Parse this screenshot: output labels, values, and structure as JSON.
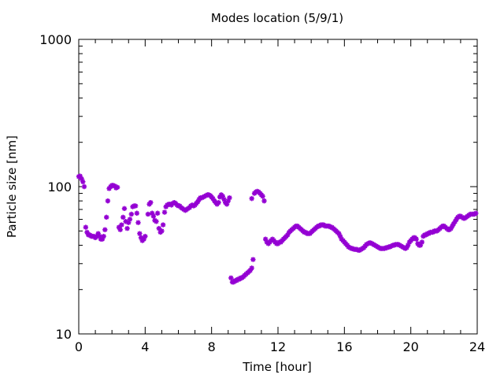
{
  "chart_data": {
    "type": "scatter",
    "title": "Modes location (5/9/1)",
    "xlabel": "Time [hour]",
    "ylabel": "Particle size [nm]",
    "xlim": [
      0,
      24
    ],
    "ylim": [
      10,
      1000
    ],
    "yscale": "log",
    "x_ticks": [
      0,
      4,
      8,
      12,
      16,
      20,
      24
    ],
    "x_tick_labels": [
      "0",
      "4",
      "8",
      "12",
      "16",
      "20",
      "24"
    ],
    "y_ticks": [
      10,
      100,
      1000
    ],
    "y_tick_labels": [
      "10",
      "100",
      "1000"
    ],
    "grid": false,
    "legend": "none",
    "marker": "asterisk",
    "colors": {
      "points": "#9400d3",
      "axis": "#000000",
      "background": "#ffffff"
    },
    "series": [
      {
        "points": [
          [
            0.0,
            117
          ],
          [
            0.08,
            118
          ],
          [
            0.17,
            113
          ],
          [
            0.25,
            108
          ],
          [
            0.33,
            100
          ],
          [
            0.42,
            53
          ],
          [
            0.5,
            49
          ],
          [
            0.58,
            47
          ],
          [
            0.67,
            47
          ],
          [
            0.75,
            46
          ],
          [
            0.83,
            46
          ],
          [
            0.92,
            46
          ],
          [
            1.0,
            45
          ],
          [
            1.08,
            46
          ],
          [
            1.17,
            48
          ],
          [
            1.25,
            46
          ],
          [
            1.33,
            44
          ],
          [
            1.42,
            44
          ],
          [
            1.5,
            46
          ],
          [
            1.58,
            51
          ],
          [
            1.67,
            62
          ],
          [
            1.75,
            80
          ],
          [
            1.83,
            97
          ],
          [
            1.92,
            100
          ],
          [
            2.0,
            102
          ],
          [
            2.08,
            102
          ],
          [
            2.17,
            101
          ],
          [
            2.25,
            98
          ],
          [
            2.33,
            99
          ],
          [
            2.42,
            53
          ],
          [
            2.5,
            51
          ],
          [
            2.58,
            55
          ],
          [
            2.67,
            62
          ],
          [
            2.75,
            71
          ],
          [
            2.83,
            58
          ],
          [
            2.92,
            52
          ],
          [
            3.0,
            57
          ],
          [
            3.08,
            60
          ],
          [
            3.17,
            65
          ],
          [
            3.25,
            73
          ],
          [
            3.33,
            74
          ],
          [
            3.42,
            74
          ],
          [
            3.5,
            66
          ],
          [
            3.58,
            57
          ],
          [
            3.67,
            48
          ],
          [
            3.75,
            45
          ],
          [
            3.83,
            43
          ],
          [
            3.92,
            44
          ],
          [
            4.0,
            46
          ],
          [
            4.17,
            65
          ],
          [
            4.25,
            76
          ],
          [
            4.33,
            78
          ],
          [
            4.42,
            66
          ],
          [
            4.5,
            63
          ],
          [
            4.58,
            59
          ],
          [
            4.67,
            58
          ],
          [
            4.75,
            66
          ],
          [
            4.83,
            52
          ],
          [
            4.92,
            49
          ],
          [
            5.0,
            50
          ],
          [
            5.08,
            55
          ],
          [
            5.17,
            67
          ],
          [
            5.25,
            73
          ],
          [
            5.33,
            75
          ],
          [
            5.42,
            76
          ],
          [
            5.5,
            76
          ],
          [
            5.58,
            75
          ],
          [
            5.67,
            77
          ],
          [
            5.75,
            78
          ],
          [
            5.83,
            77
          ],
          [
            5.92,
            75
          ],
          [
            6.0,
            74
          ],
          [
            6.08,
            74
          ],
          [
            6.17,
            72
          ],
          [
            6.25,
            71
          ],
          [
            6.33,
            70
          ],
          [
            6.42,
            69
          ],
          [
            6.5,
            70
          ],
          [
            6.58,
            71
          ],
          [
            6.67,
            72
          ],
          [
            6.75,
            74
          ],
          [
            6.83,
            75
          ],
          [
            6.92,
            74
          ],
          [
            7.0,
            75
          ],
          [
            7.08,
            77
          ],
          [
            7.17,
            79
          ],
          [
            7.25,
            82
          ],
          [
            7.33,
            84
          ],
          [
            7.42,
            84
          ],
          [
            7.5,
            85
          ],
          [
            7.58,
            86
          ],
          [
            7.67,
            87
          ],
          [
            7.75,
            88
          ],
          [
            7.83,
            88
          ],
          [
            7.92,
            87
          ],
          [
            8.0,
            85
          ],
          [
            8.08,
            83
          ],
          [
            8.17,
            80
          ],
          [
            8.25,
            78
          ],
          [
            8.33,
            76
          ],
          [
            8.42,
            78
          ],
          [
            8.5,
            85
          ],
          [
            8.58,
            88
          ],
          [
            8.67,
            86
          ],
          [
            8.75,
            82
          ],
          [
            8.83,
            78
          ],
          [
            8.92,
            76
          ],
          [
            9.0,
            80
          ],
          [
            9.08,
            84
          ],
          [
            9.17,
            24
          ],
          [
            9.25,
            22.5
          ],
          [
            9.33,
            22.5
          ],
          [
            9.42,
            23
          ],
          [
            9.5,
            23
          ],
          [
            9.58,
            23.5
          ],
          [
            9.67,
            23.5
          ],
          [
            9.75,
            24
          ],
          [
            9.83,
            24
          ],
          [
            9.92,
            24.5
          ],
          [
            10.0,
            25
          ],
          [
            10.08,
            25.5
          ],
          [
            10.17,
            26
          ],
          [
            10.25,
            26.5
          ],
          [
            10.33,
            27
          ],
          [
            10.42,
            28
          ],
          [
            10.5,
            32
          ],
          [
            10.42,
            83
          ],
          [
            10.58,
            90
          ],
          [
            10.67,
            92
          ],
          [
            10.75,
            93
          ],
          [
            10.83,
            92
          ],
          [
            10.92,
            90
          ],
          [
            11.0,
            88
          ],
          [
            11.08,
            86
          ],
          [
            11.17,
            80
          ],
          [
            11.25,
            44
          ],
          [
            11.33,
            42
          ],
          [
            11.42,
            41
          ],
          [
            11.5,
            42
          ],
          [
            11.58,
            43
          ],
          [
            11.67,
            44
          ],
          [
            11.75,
            43
          ],
          [
            11.83,
            42
          ],
          [
            11.92,
            41
          ],
          [
            12.0,
            41
          ],
          [
            12.08,
            42
          ],
          [
            12.17,
            42
          ],
          [
            12.25,
            43
          ],
          [
            12.33,
            44
          ],
          [
            12.42,
            45
          ],
          [
            12.5,
            46
          ],
          [
            12.58,
            47
          ],
          [
            12.67,
            49
          ],
          [
            12.75,
            50
          ],
          [
            12.83,
            51
          ],
          [
            12.92,
            52
          ],
          [
            13.0,
            53
          ],
          [
            13.08,
            54
          ],
          [
            13.17,
            54
          ],
          [
            13.25,
            53
          ],
          [
            13.33,
            52
          ],
          [
            13.42,
            51
          ],
          [
            13.5,
            50
          ],
          [
            13.58,
            49
          ],
          [
            13.67,
            49
          ],
          [
            13.75,
            48
          ],
          [
            13.83,
            48
          ],
          [
            13.92,
            48
          ],
          [
            14.0,
            49
          ],
          [
            14.08,
            50
          ],
          [
            14.17,
            51
          ],
          [
            14.25,
            52
          ],
          [
            14.33,
            53
          ],
          [
            14.42,
            54
          ],
          [
            14.5,
            54
          ],
          [
            14.58,
            55
          ],
          [
            14.67,
            55
          ],
          [
            14.75,
            55
          ],
          [
            14.83,
            54
          ],
          [
            14.92,
            54
          ],
          [
            15.0,
            54
          ],
          [
            15.08,
            54
          ],
          [
            15.17,
            53
          ],
          [
            15.25,
            53
          ],
          [
            15.33,
            52
          ],
          [
            15.42,
            51
          ],
          [
            15.5,
            50
          ],
          [
            15.58,
            49
          ],
          [
            15.67,
            48
          ],
          [
            15.75,
            46
          ],
          [
            15.83,
            44
          ],
          [
            15.92,
            43
          ],
          [
            16.0,
            42
          ],
          [
            16.08,
            41
          ],
          [
            16.17,
            40
          ],
          [
            16.25,
            39
          ],
          [
            16.33,
            38.5
          ],
          [
            16.42,
            38
          ],
          [
            16.5,
            38
          ],
          [
            16.58,
            37.5
          ],
          [
            16.67,
            37.5
          ],
          [
            16.75,
            37.5
          ],
          [
            16.83,
            37
          ],
          [
            16.92,
            37
          ],
          [
            17.0,
            37.5
          ],
          [
            17.08,
            38
          ],
          [
            17.17,
            38.5
          ],
          [
            17.25,
            39.5
          ],
          [
            17.33,
            40.5
          ],
          [
            17.42,
            41
          ],
          [
            17.5,
            41.5
          ],
          [
            17.58,
            41.5
          ],
          [
            17.67,
            41
          ],
          [
            17.75,
            40.5
          ],
          [
            17.83,
            40
          ],
          [
            17.92,
            39.5
          ],
          [
            18.0,
            39
          ],
          [
            18.08,
            38.5
          ],
          [
            18.17,
            38
          ],
          [
            18.25,
            38
          ],
          [
            18.33,
            38
          ],
          [
            18.42,
            38
          ],
          [
            18.5,
            38.5
          ],
          [
            18.58,
            38.5
          ],
          [
            18.67,
            39
          ],
          [
            18.75,
            39
          ],
          [
            18.83,
            39.5
          ],
          [
            18.92,
            40
          ],
          [
            19.0,
            40
          ],
          [
            19.08,
            40.5
          ],
          [
            19.17,
            40.5
          ],
          [
            19.25,
            40.5
          ],
          [
            19.33,
            40
          ],
          [
            19.42,
            39.5
          ],
          [
            19.5,
            39
          ],
          [
            19.58,
            38.5
          ],
          [
            19.67,
            38
          ],
          [
            19.75,
            38.5
          ],
          [
            19.83,
            40
          ],
          [
            19.92,
            42
          ],
          [
            20.0,
            43
          ],
          [
            20.08,
            44
          ],
          [
            20.17,
            45
          ],
          [
            20.25,
            45
          ],
          [
            20.33,
            44
          ],
          [
            20.42,
            41
          ],
          [
            20.5,
            40
          ],
          [
            20.58,
            40
          ],
          [
            20.67,
            42
          ],
          [
            20.75,
            46
          ],
          [
            20.83,
            47
          ],
          [
            20.92,
            47
          ],
          [
            21.0,
            48
          ],
          [
            21.08,
            48
          ],
          [
            21.17,
            49
          ],
          [
            21.25,
            49
          ],
          [
            21.33,
            49
          ],
          [
            21.42,
            50
          ],
          [
            21.5,
            50
          ],
          [
            21.58,
            50
          ],
          [
            21.67,
            51
          ],
          [
            21.75,
            52
          ],
          [
            21.83,
            53
          ],
          [
            21.92,
            54
          ],
          [
            22.0,
            54
          ],
          [
            22.08,
            53
          ],
          [
            22.17,
            52
          ],
          [
            22.25,
            51
          ],
          [
            22.33,
            51
          ],
          [
            22.42,
            52
          ],
          [
            22.5,
            54
          ],
          [
            22.58,
            56
          ],
          [
            22.67,
            58
          ],
          [
            22.75,
            60
          ],
          [
            22.83,
            62
          ],
          [
            22.92,
            63
          ],
          [
            23.0,
            63
          ],
          [
            23.08,
            62
          ],
          [
            23.17,
            61
          ],
          [
            23.25,
            61
          ],
          [
            23.33,
            62
          ],
          [
            23.42,
            63
          ],
          [
            23.5,
            64
          ],
          [
            23.58,
            65
          ],
          [
            23.67,
            65
          ],
          [
            23.75,
            65
          ],
          [
            23.83,
            65
          ],
          [
            23.92,
            66
          ]
        ]
      }
    ]
  }
}
